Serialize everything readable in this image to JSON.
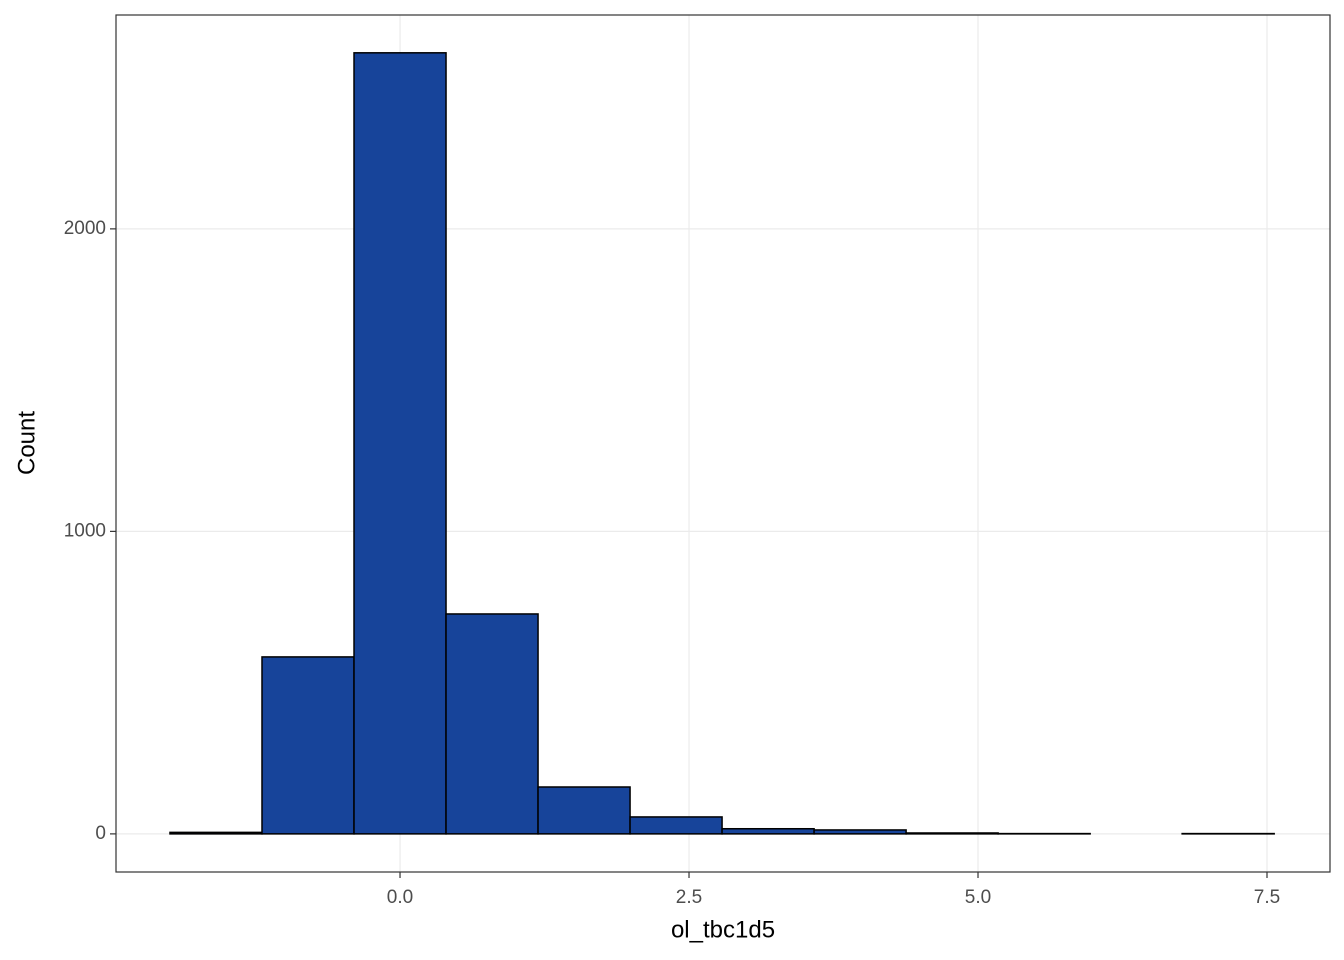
{
  "chart_data": {
    "type": "histogram",
    "x_label": "ol_tbc1d5",
    "y_label": "Count",
    "bins": [
      -1.99,
      -1.194,
      -0.398,
      0.398,
      1.194,
      1.99,
      2.786,
      3.582,
      4.378,
      5.174,
      5.97,
      6.766,
      7.562
    ],
    "values": [
      5,
      585,
      2582,
      727,
      155,
      56,
      17,
      13,
      3,
      1,
      0,
      1
    ],
    "color": "#17449a",
    "edgecolor": "#000000",
    "xlim": [
      -2.457,
      8.045
    ],
    "ylim": [
      -126,
      2707
    ],
    "xticks": [
      {
        "value": 0,
        "label": "0.0"
      },
      {
        "value": 2.5,
        "label": "2.5"
      },
      {
        "value": 5,
        "label": "5.0"
      },
      {
        "value": 7.5,
        "label": "7.5"
      }
    ],
    "yticks": [
      0,
      1000,
      2000
    ],
    "grid": true
  }
}
